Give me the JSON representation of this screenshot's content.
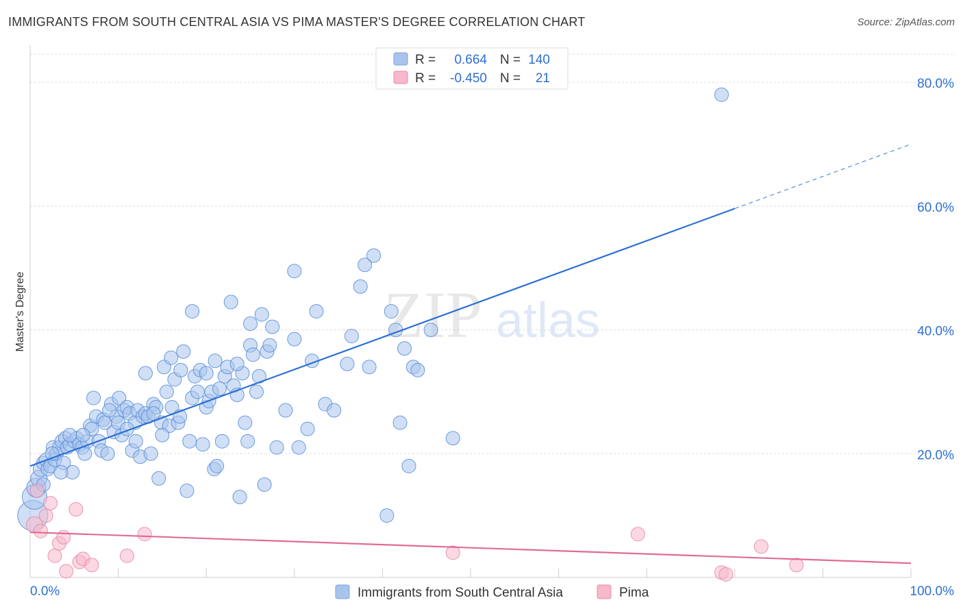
{
  "header": {
    "title": "IMMIGRANTS FROM SOUTH CENTRAL ASIA VS PIMA MASTER'S DEGREE CORRELATION CHART",
    "source": "Source: ZipAtlas.com"
  },
  "watermark": {
    "zip": "ZIP",
    "atlas": "atlas"
  },
  "legend_stats": [
    {
      "r_label": "R =",
      "r_value": "0.664",
      "n_label": "N =",
      "n_value": "140",
      "color": "#a9c4ec"
    },
    {
      "r_label": "R =",
      "r_value": "-0.450",
      "n_label": "N =",
      "n_value": "21",
      "color": "#f7b8cb"
    }
  ],
  "chart_data": {
    "type": "scatter",
    "title": "IMMIGRANTS FROM SOUTH CENTRAL ASIA VS PIMA MASTER'S DEGREE CORRELATION CHART",
    "xlabel": "",
    "ylabel": "Master's Degree",
    "xlim": [
      0,
      100
    ],
    "ylim": [
      0,
      85
    ],
    "x_tick_labels": [
      {
        "value": 0,
        "label": "0.0%"
      },
      {
        "value": 100,
        "label": "100.0%"
      }
    ],
    "y_tick_labels": [
      {
        "value": 20,
        "label": "20.0%"
      },
      {
        "value": 40,
        "label": "40.0%"
      },
      {
        "value": 60,
        "label": "60.0%"
      },
      {
        "value": 80,
        "label": "80.0%"
      }
    ],
    "grid": true,
    "legend_position": "bottom",
    "series": [
      {
        "name": "Immigrants from South Central Asia",
        "color": "#5b8fd9",
        "fill": "#a9c4ec",
        "trend": {
          "x0": 0,
          "y0": 18.0,
          "x1": 80,
          "y1": 59.6,
          "dashed_to_x": 100,
          "dashed_to_y": 70,
          "color": "#2b6fd4"
        },
        "points": [
          [
            0.3,
            10
          ],
          [
            0.5,
            13
          ],
          [
            0.7,
            14.5
          ],
          [
            1.0,
            16
          ],
          [
            1.2,
            17.5
          ],
          [
            1.5,
            18.5
          ],
          [
            1.8,
            19
          ],
          [
            2.0,
            17.5
          ],
          [
            2.3,
            18
          ],
          [
            2.6,
            21
          ],
          [
            2.8,
            19
          ],
          [
            3.0,
            20
          ],
          [
            3.3,
            21
          ],
          [
            3.6,
            22
          ],
          [
            3.8,
            18.5
          ],
          [
            4.0,
            22.5
          ],
          [
            4.2,
            21
          ],
          [
            4.5,
            21.5
          ],
          [
            4.8,
            17
          ],
          [
            5.0,
            22
          ],
          [
            5.3,
            22.5
          ],
          [
            5.6,
            21.5
          ],
          [
            5.9,
            21
          ],
          [
            6.2,
            20
          ],
          [
            6.5,
            22
          ],
          [
            6.8,
            24.5
          ],
          [
            7.2,
            29
          ],
          [
            7.5,
            26
          ],
          [
            7.8,
            22
          ],
          [
            8.1,
            20.5
          ],
          [
            8.3,
            25.5
          ],
          [
            8.5,
            25
          ],
          [
            8.8,
            20
          ],
          [
            9.2,
            28
          ],
          [
            9.5,
            23.5
          ],
          [
            9.8,
            26
          ],
          [
            10.1,
            29
          ],
          [
            10.4,
            23
          ],
          [
            10.7,
            27
          ],
          [
            11.0,
            27.5
          ],
          [
            11.3,
            26.5
          ],
          [
            11.6,
            20.5
          ],
          [
            11.9,
            25
          ],
          [
            12.2,
            27
          ],
          [
            12.5,
            19.5
          ],
          [
            12.8,
            26
          ],
          [
            13.1,
            26.5
          ],
          [
            13.4,
            26
          ],
          [
            13.7,
            20
          ],
          [
            14.0,
            28
          ],
          [
            14.3,
            27.5
          ],
          [
            14.6,
            16
          ],
          [
            14.9,
            25
          ],
          [
            15.2,
            34
          ],
          [
            15.5,
            30
          ],
          [
            15.8,
            24.5
          ],
          [
            16.1,
            27.5
          ],
          [
            16.4,
            32
          ],
          [
            16.8,
            25
          ],
          [
            17.1,
            33.5
          ],
          [
            17.4,
            36.5
          ],
          [
            17.8,
            14
          ],
          [
            18.1,
            22
          ],
          [
            18.4,
            29
          ],
          [
            18.7,
            32.5
          ],
          [
            19.0,
            30
          ],
          [
            19.3,
            33.5
          ],
          [
            19.6,
            21.5
          ],
          [
            20.0,
            27.5
          ],
          [
            20.3,
            28.5
          ],
          [
            20.6,
            30
          ],
          [
            20.9,
            17.5
          ],
          [
            21.2,
            18
          ],
          [
            21.5,
            30.5
          ],
          [
            21.8,
            22
          ],
          [
            22.1,
            32.5
          ],
          [
            22.4,
            34
          ],
          [
            22.8,
            44.5
          ],
          [
            23.1,
            31
          ],
          [
            23.5,
            29.5
          ],
          [
            23.8,
            13
          ],
          [
            24.1,
            33
          ],
          [
            24.4,
            25
          ],
          [
            24.7,
            22
          ],
          [
            25.0,
            37.5
          ],
          [
            25.3,
            36
          ],
          [
            25.7,
            30
          ],
          [
            26.0,
            32.5
          ],
          [
            26.3,
            42.5
          ],
          [
            26.6,
            15
          ],
          [
            26.9,
            36.5
          ],
          [
            27.2,
            37.5
          ],
          [
            27.5,
            40.5
          ],
          [
            13.1,
            33
          ],
          [
            18.4,
            43
          ],
          [
            23.5,
            34.5
          ],
          [
            28.0,
            21
          ],
          [
            30.0,
            38.5
          ],
          [
            32.0,
            35
          ],
          [
            29.0,
            27
          ],
          [
            30.5,
            21
          ],
          [
            31.5,
            24
          ],
          [
            32.5,
            43
          ],
          [
            33.5,
            28
          ],
          [
            34.5,
            27
          ],
          [
            36.0,
            34.5
          ],
          [
            36.5,
            39
          ],
          [
            37.5,
            47
          ],
          [
            38.5,
            34
          ],
          [
            40.5,
            10
          ],
          [
            41.0,
            43
          ],
          [
            41.5,
            40
          ],
          [
            42.0,
            25
          ],
          [
            42.5,
            37
          ],
          [
            43.0,
            18
          ],
          [
            43.5,
            34
          ],
          [
            44.0,
            33.5
          ],
          [
            45.5,
            40
          ],
          [
            48.0,
            22.5
          ],
          [
            39.0,
            52
          ],
          [
            38.0,
            50.5
          ],
          [
            30.0,
            49.5
          ],
          [
            16.0,
            35.5
          ],
          [
            20.0,
            33
          ],
          [
            10.0,
            25
          ],
          [
            7.0,
            24
          ],
          [
            3.5,
            17
          ],
          [
            1.5,
            15
          ],
          [
            2.5,
            20
          ],
          [
            4.5,
            23
          ],
          [
            6.0,
            23
          ],
          [
            9.0,
            27
          ],
          [
            11.0,
            24
          ],
          [
            12.0,
            22
          ],
          [
            14.0,
            26.5
          ],
          [
            15.0,
            23
          ],
          [
            17.0,
            26
          ],
          [
            21.0,
            35
          ],
          [
            25.0,
            41
          ],
          [
            78.5,
            78
          ]
        ],
        "sizes": [
          22,
          18,
          14,
          12,
          11,
          10,
          10,
          10,
          10,
          10,
          10,
          10,
          10,
          10,
          10,
          10,
          10,
          10,
          10,
          10,
          10,
          10,
          10,
          10,
          10,
          10,
          10,
          10,
          10,
          10,
          10,
          10,
          10,
          10,
          10,
          10,
          10,
          10,
          10,
          10,
          10,
          10,
          10,
          10,
          10,
          10,
          10,
          10,
          10,
          10,
          10,
          10,
          10,
          10,
          10,
          10,
          10,
          10,
          10,
          10,
          10,
          10,
          10,
          10,
          10,
          10,
          10,
          10,
          10,
          10,
          10,
          10,
          10,
          10,
          10,
          10,
          10,
          10,
          10,
          10,
          10,
          10,
          10,
          10,
          10,
          10,
          10,
          10,
          10,
          10,
          10,
          10,
          10,
          10,
          10,
          10,
          10,
          10,
          10,
          10,
          10,
          10,
          10,
          10,
          10,
          10,
          10,
          10,
          10,
          10,
          10,
          10,
          10,
          10,
          10,
          10,
          10,
          10,
          10,
          10,
          10,
          10,
          10,
          10,
          10,
          10,
          10,
          10,
          10,
          10,
          10,
          10,
          10,
          10,
          10,
          10,
          10,
          10,
          10,
          10
        ]
      },
      {
        "name": "Pima",
        "color": "#e889a6",
        "fill": "#f7b8cb",
        "trend": {
          "x0": 0,
          "y0": 7.3,
          "x1": 100,
          "y1": 2.3,
          "color": "#e06b94"
        },
        "points": [
          [
            0.5,
            8.5
          ],
          [
            0.8,
            14
          ],
          [
            1.2,
            7.5
          ],
          [
            1.8,
            10
          ],
          [
            2.3,
            12
          ],
          [
            2.8,
            3.5
          ],
          [
            3.3,
            5.5
          ],
          [
            3.8,
            6.5
          ],
          [
            4.1,
            1
          ],
          [
            5.2,
            11
          ],
          [
            5.6,
            2.5
          ],
          [
            6.0,
            3
          ],
          [
            7.0,
            2
          ],
          [
            11.0,
            3.5
          ],
          [
            13.0,
            7
          ],
          [
            48.0,
            4
          ],
          [
            69.0,
            7
          ],
          [
            78.5,
            0.8
          ],
          [
            79.0,
            0.5
          ],
          [
            83.0,
            5
          ],
          [
            87.0,
            2
          ]
        ],
        "sizes": [
          12,
          10,
          10,
          10,
          10,
          10,
          10,
          10,
          10,
          10,
          10,
          10,
          10,
          10,
          10,
          10,
          10,
          10,
          10,
          10,
          10
        ]
      }
    ]
  }
}
